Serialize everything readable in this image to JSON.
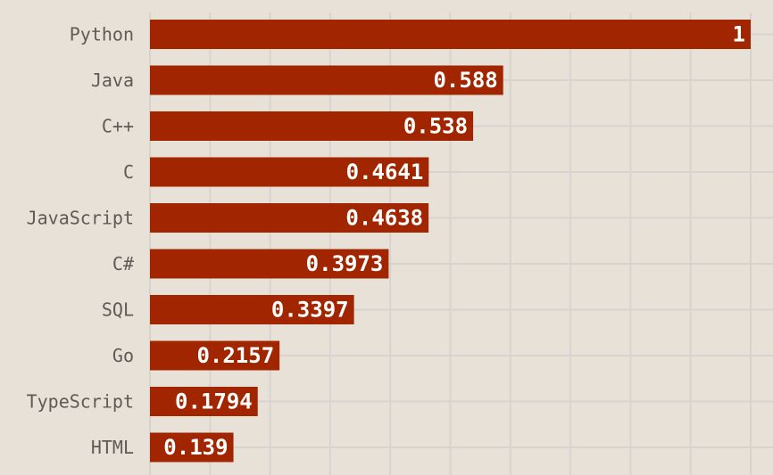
{
  "chart_data": {
    "type": "bar",
    "orientation": "horizontal",
    "title": "",
    "xlabel": "",
    "ylabel": "",
    "xlim": [
      0,
      1
    ],
    "grid": true,
    "categories": [
      "Python",
      "Java",
      "C++",
      "C",
      "JavaScript",
      "C#",
      "SQL",
      "Go",
      "TypeScript",
      "HTML"
    ],
    "values": [
      1,
      0.588,
      0.538,
      0.4641,
      0.4638,
      0.3973,
      0.3397,
      0.2157,
      0.1794,
      0.139
    ],
    "value_labels": [
      "1",
      "0.588",
      "0.538",
      "0.4641",
      "0.4638",
      "0.3973",
      "0.3397",
      "0.2157",
      "0.1794",
      "0.139"
    ],
    "colors": {
      "background": "#e8e1d8",
      "bar": "#a12600",
      "grid": "#d7d4d0",
      "category_text": "#5f5a55",
      "value_text": "#ffffff"
    }
  }
}
